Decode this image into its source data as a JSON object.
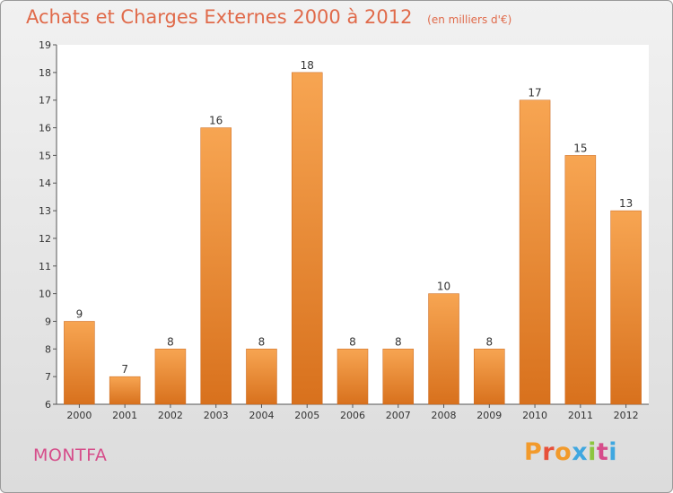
{
  "header": {
    "title": "Achats et Charges Externes 2000 à 2012",
    "subtitle": "(en milliers d'€)"
  },
  "footer": {
    "commune": "MONTFA",
    "logo_text": "Proxiti"
  },
  "colors": {
    "bar_light": "#f7a552",
    "bar_dark": "#d8711d",
    "bar_border": "#c8661c",
    "title": "#e06a4a",
    "commune": "#d64d8a",
    "logo_letters": [
      "#f29a2b",
      "#e7503a",
      "#f29a2b",
      "#3fa7e0",
      "#8cc63f",
      "#d64d8a",
      "#3fa7e0"
    ]
  },
  "chart_data": {
    "type": "bar",
    "title": "Achats et Charges Externes 2000 à 2012",
    "subtitle": "(en milliers d'€)",
    "categories": [
      "2000",
      "2001",
      "2002",
      "2003",
      "2004",
      "2005",
      "2006",
      "2007",
      "2008",
      "2009",
      "2010",
      "2011",
      "2012"
    ],
    "values": [
      9,
      7,
      8,
      16,
      8,
      18,
      8,
      8,
      10,
      8,
      17,
      15,
      13
    ],
    "value_labels": [
      "9",
      "7",
      "8",
      "16",
      "8",
      "18",
      "8",
      "8",
      "10",
      "8",
      "17",
      "15",
      "13"
    ],
    "ylim": [
      6,
      19
    ],
    "yticks": [
      "6",
      "7",
      "8",
      "9",
      "10",
      "11",
      "12",
      "13",
      "14",
      "15",
      "16",
      "17",
      "18",
      "19"
    ],
    "xlabel": "",
    "ylabel": "",
    "grid": false,
    "legend": "none"
  }
}
